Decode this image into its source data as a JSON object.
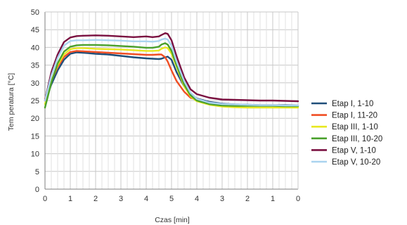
{
  "chart_data": {
    "type": "line",
    "title": "",
    "xlabel": "Czas [min]",
    "ylabel": "Tem peratura [°C]",
    "x_tick_labels": [
      "0",
      "1",
      "2",
      "3",
      "4",
      "5",
      "4",
      "3",
      "2",
      "1",
      "0"
    ],
    "y_ticks": [
      0,
      5,
      10,
      15,
      20,
      25,
      30,
      35,
      40,
      45,
      50
    ],
    "ylim": [
      0,
      50
    ],
    "grid": true,
    "legend_position": "right",
    "x_positions": [
      0,
      0.25,
      0.5,
      0.75,
      1.0,
      1.25,
      1.5,
      2.0,
      2.5,
      3.0,
      3.5,
      4.0,
      4.25,
      4.5,
      4.6,
      4.75,
      4.85,
      5.0,
      5.2,
      5.5,
      5.75,
      6.0,
      6.5,
      7.0,
      7.5,
      8.0,
      8.5,
      9.0,
      9.5,
      10.0
    ],
    "series": [
      {
        "name": "Etap I, 1-10",
        "color": "#1f4e79",
        "values": [
          25,
          29.5,
          33.5,
          36.5,
          38.2,
          38.6,
          38.5,
          38.2,
          38.0,
          37.6,
          37.2,
          36.9,
          36.8,
          36.7,
          36.8,
          37.2,
          37.4,
          36.5,
          33.0,
          29.0,
          26.8,
          25.6,
          24.6,
          24.1,
          23.9,
          23.8,
          23.7,
          23.7,
          23.7,
          23.6
        ]
      },
      {
        "name": "Etap I, 11-20",
        "color": "#f04e23",
        "values": [
          25.5,
          30.5,
          34.5,
          37.3,
          38.7,
          39.0,
          38.9,
          38.7,
          38.5,
          38.3,
          38.1,
          37.9,
          37.9,
          38.0,
          38.0,
          37.2,
          36.0,
          33.5,
          30.5,
          27.5,
          25.8,
          25.2,
          null,
          null,
          null,
          null,
          null,
          null,
          null,
          null
        ]
      },
      {
        "name": "Etap III, 1-10",
        "color": "#e8e820",
        "values": [
          24,
          30.5,
          35.0,
          38.0,
          39.5,
          39.8,
          39.8,
          39.6,
          39.5,
          39.4,
          39.2,
          39.0,
          39.0,
          39.1,
          39.6,
          40.0,
          39.8,
          38.2,
          34.5,
          29.0,
          26.2,
          24.8,
          23.8,
          23.3,
          23.1,
          23.0,
          23.0,
          23.0,
          23.0,
          23.0
        ]
      },
      {
        "name": "Etap III, 10-20",
        "color": "#4aa02c",
        "values": [
          23,
          30.0,
          35.5,
          38.8,
          40.2,
          40.6,
          40.7,
          40.7,
          40.6,
          40.4,
          40.2,
          39.9,
          39.9,
          40.2,
          40.8,
          41.2,
          40.8,
          39.0,
          35.0,
          29.5,
          26.5,
          25.0,
          24.0,
          23.6,
          23.5,
          23.5,
          23.5,
          23.5,
          23.4,
          23.4
        ]
      },
      {
        "name": "Etap V, 1-10",
        "color": "#7a1040",
        "values": [
          25,
          33.0,
          38.0,
          41.5,
          42.8,
          43.2,
          43.3,
          43.4,
          43.3,
          43.1,
          42.9,
          43.1,
          42.9,
          43.1,
          43.5,
          44.0,
          43.8,
          42.0,
          37.5,
          31.5,
          28.2,
          26.8,
          25.8,
          25.3,
          25.2,
          25.1,
          25.0,
          25.0,
          24.9,
          24.8
        ]
      },
      {
        "name": "Etap V, 10-20",
        "color": "#a9d3ef",
        "values": [
          25,
          32.0,
          37.0,
          40.5,
          41.8,
          42.0,
          42.0,
          42.1,
          42.0,
          41.9,
          41.7,
          41.7,
          41.6,
          41.8,
          42.2,
          42.5,
          42.2,
          40.5,
          36.0,
          30.5,
          27.2,
          25.5,
          24.4,
          24.0,
          23.9,
          23.8,
          23.7,
          23.7,
          23.6,
          23.6
        ]
      }
    ]
  }
}
